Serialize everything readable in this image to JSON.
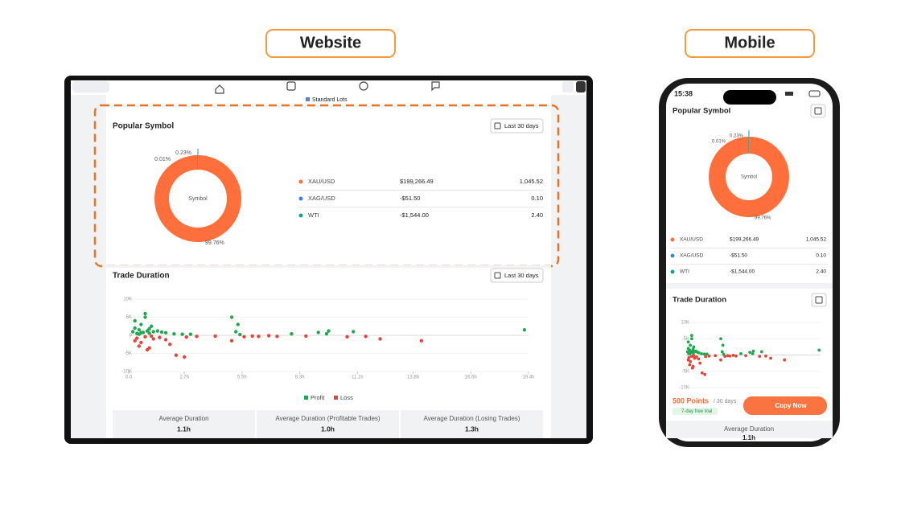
{
  "headings": {
    "website": "Website",
    "mobile": "Mobile"
  },
  "top_legend": "Standard Lots",
  "popular_symbol": {
    "title": "Popular Symbol",
    "date_range": "Last 30 days",
    "center_label": "Symbol",
    "slices": [
      {
        "value": 99.76,
        "label": "99.76%",
        "color": "#ff6f3c"
      },
      {
        "value": 0.01,
        "label": "0.01%",
        "color": "#3b82f6"
      },
      {
        "value": 0.23,
        "label": "0.23%",
        "color": "#14a38b"
      }
    ],
    "rows": [
      {
        "symbol": "XAU/USD",
        "pnl": "$199,266.49",
        "lots": "1,045.52"
      },
      {
        "symbol": "XAG/USD",
        "pnl": "-$51.50",
        "lots": "0.10"
      },
      {
        "symbol": "WTI",
        "pnl": "-$1,544.00",
        "lots": "2.40"
      }
    ]
  },
  "trade_duration": {
    "title": "Trade Duration",
    "date_range": "Last 30 days",
    "type": "scatter",
    "xlim": [
      0,
      19.4
    ],
    "xticks": [
      {
        "value": 0,
        "label": "0.0"
      },
      {
        "value": 2.7,
        "label": "2.7h"
      },
      {
        "value": 5.5,
        "label": "5.5h"
      },
      {
        "value": 8.3,
        "label": "8.3h"
      },
      {
        "value": 11.1,
        "label": "11.1h"
      },
      {
        "value": 13.8,
        "label": "13.8h"
      },
      {
        "value": 16.6,
        "label": "16.6h"
      },
      {
        "value": 19.4,
        "label": "19.4h"
      }
    ],
    "ylim": [
      -10000,
      10000
    ],
    "yticks": [
      {
        "value": 10000,
        "label": "10K"
      },
      {
        "value": 5000,
        "label": "5K"
      },
      0,
      {
        "value": -5000,
        "label": "-5K"
      },
      {
        "value": -10000,
        "label": "-10K"
      }
    ],
    "series": [
      {
        "name": "Profit",
        "color": "#1fa84f",
        "x": [
          0.2,
          0.3,
          0.4,
          0.5,
          0.6,
          0.7,
          0.8,
          0.9,
          1.0,
          1.1,
          1.2,
          0.3,
          0.5,
          0.6,
          0.8,
          1.0,
          1.4,
          1.6,
          1.8,
          2.2,
          2.6,
          3.0,
          5.0,
          5.2,
          5.3,
          5.4,
          7.9,
          9.2,
          9.6,
          9.7,
          10.9,
          19.2
        ],
        "y": [
          1000,
          2000,
          500,
          1500,
          3000,
          800,
          5000,
          1200,
          600,
          2500,
          1000,
          4000,
          300,
          700,
          6000,
          1800,
          1200,
          900,
          700,
          400,
          300,
          300,
          5000,
          1000,
          3000,
          200,
          400,
          800,
          400,
          1200,
          1000,
          1500
        ]
      },
      {
        "name": "Loss",
        "color": "#e0463a",
        "x": [
          0.3,
          0.4,
          0.6,
          0.8,
          1.0,
          1.2,
          1.5,
          1.8,
          2.0,
          2.3,
          2.8,
          3.3,
          4.2,
          5.0,
          5.6,
          6.0,
          6.3,
          6.8,
          7.2,
          8.6,
          10.6,
          11.5,
          12.2,
          14.2,
          0.5,
          0.9,
          1.1,
          2.7
        ],
        "y": [
          -1500,
          -800,
          -2000,
          -400,
          -3500,
          -1000,
          -600,
          -1200,
          -2500,
          -5500,
          -500,
          -300,
          -200,
          -1500,
          -400,
          -200,
          -300,
          -100,
          -300,
          -200,
          -400,
          -300,
          -1000,
          -1500,
          -3000,
          -4000,
          -200,
          -6000
        ]
      }
    ]
  },
  "stats": [
    {
      "label": "Average Duration",
      "value": "1.1h"
    },
    {
      "label": "Average Duration (Profitable Trades)",
      "value": "1.0h"
    },
    {
      "label": "Average Duration (Losing Trades)",
      "value": "1.3h"
    }
  ],
  "mobile": {
    "time": "15:38",
    "points": "500 Points",
    "period": "/ 30 days",
    "trial": "7-day free trial",
    "button": "Copy Now"
  }
}
